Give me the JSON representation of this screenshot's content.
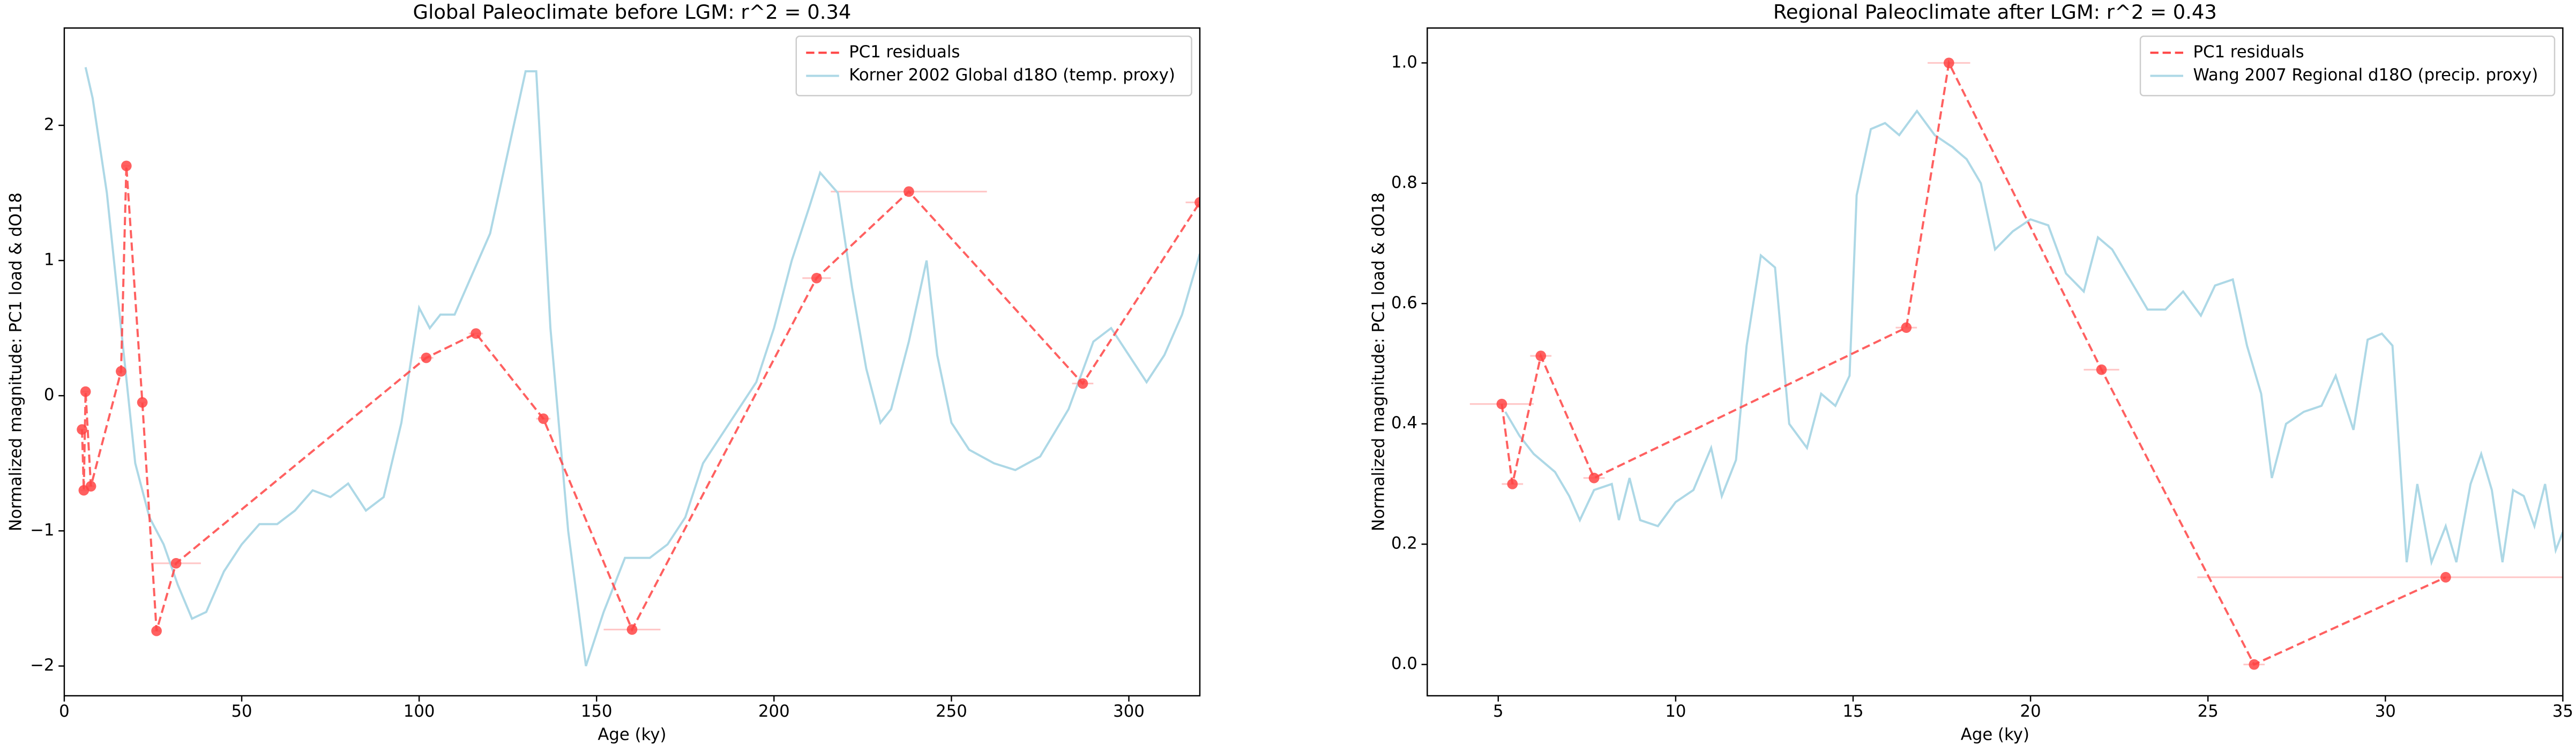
{
  "chart_data": [
    {
      "type": "line",
      "title": "Global Paleoclimate before LGM: r^2 = 0.34",
      "xlabel": "Age (ky)",
      "ylabel": "Normalized magnitude: PC1 load & dO18",
      "xlim": [
        0,
        320
      ],
      "ylim": [
        -2.22,
        2.72
      ],
      "xticks": [
        0,
        50,
        100,
        150,
        200,
        250,
        300
      ],
      "yticks": [
        {
          "value": -2,
          "label": "−2"
        },
        {
          "value": -1,
          "label": "−1"
        },
        0,
        1,
        2
      ],
      "legend": "upper right",
      "series": [
        {
          "name": "PC1 residuals",
          "color": "#ff4444",
          "style": "dashed",
          "marker": "o",
          "x": [
            5,
            5.5,
            6,
            7.5,
            16,
            17.5,
            22,
            26,
            31.5,
            102,
            116,
            135,
            160,
            212,
            238,
            287,
            320
          ],
          "values": [
            -0.25,
            -0.7,
            0.03,
            -0.67,
            0.18,
            1.7,
            -0.05,
            -1.74,
            -1.24,
            0.28,
            0.46,
            -0.17,
            -1.73,
            0.87,
            1.51,
            0.09,
            1.43
          ],
          "xerr": [
            1,
            1,
            1,
            1,
            1,
            1,
            1,
            1,
            7,
            2,
            2,
            2,
            8,
            4,
            22,
            3,
            4
          ]
        },
        {
          "name": "Korner 2002 Global d18O (temp. proxy)",
          "color": "#add8e6",
          "style": "solid",
          "x": [
            6,
            8,
            12,
            16,
            20,
            24,
            28,
            32,
            36,
            40,
            45,
            50,
            55,
            60,
            65,
            70,
            75,
            80,
            85,
            90,
            95,
            100,
            103,
            106,
            110,
            115,
            120,
            125,
            130,
            133,
            137,
            142,
            147,
            152,
            158,
            165,
            170,
            175,
            180,
            185,
            190,
            195,
            200,
            205,
            210,
            213,
            218,
            222,
            226,
            230,
            233,
            238,
            243,
            246,
            250,
            255,
            262,
            268,
            275,
            283,
            290,
            295,
            300,
            305,
            310,
            315,
            320
          ],
          "values": [
            2.43,
            2.2,
            1.5,
            0.5,
            -0.5,
            -0.9,
            -1.1,
            -1.4,
            -1.65,
            -1.6,
            -1.3,
            -1.1,
            -0.95,
            -0.95,
            -0.85,
            -0.7,
            -0.75,
            -0.65,
            -0.85,
            -0.75,
            -0.2,
            0.65,
            0.5,
            0.6,
            0.6,
            0.9,
            1.2,
            1.8,
            2.4,
            2.4,
            0.5,
            -1.0,
            -2.0,
            -1.6,
            -1.2,
            -1.2,
            -1.1,
            -0.9,
            -0.5,
            -0.3,
            -0.1,
            0.1,
            0.5,
            1.0,
            1.4,
            1.65,
            1.5,
            0.8,
            0.2,
            -0.2,
            -0.1,
            0.4,
            1.0,
            0.3,
            -0.2,
            -0.4,
            -0.5,
            -0.55,
            -0.45,
            -0.1,
            0.4,
            0.5,
            0.3,
            0.1,
            0.3,
            0.6,
            1.05
          ]
        }
      ]
    },
    {
      "type": "line",
      "title": "Regional Paleoclimate after LGM: r^2 = 0.43",
      "xlabel": "Age (ky)",
      "ylabel": "Normalized magnitude: PC1 load & dO18",
      "xlim": [
        3,
        35
      ],
      "ylim": [
        -0.052,
        1.058
      ],
      "xticks": [
        5,
        10,
        15,
        20,
        25,
        30,
        35
      ],
      "yticks": [
        {
          "value": 0,
          "label": "0.0"
        },
        0.2,
        0.4,
        0.6,
        0.8,
        {
          "value": 1,
          "label": "1.0"
        }
      ],
      "legend": "upper right",
      "series": [
        {
          "name": "PC1 residuals",
          "color": "#ff4444",
          "style": "dashed",
          "marker": "o",
          "x": [
            5.1,
            5.4,
            6.2,
            7.7,
            16.5,
            17.7,
            22.0,
            26.3,
            31.7
          ],
          "values": [
            0.433,
            0.3,
            0.513,
            0.31,
            0.56,
            1.0,
            0.49,
            0.0,
            0.145
          ],
          "xerr": [
            0.9,
            0.3,
            0.3,
            0.3,
            0.3,
            0.6,
            0.5,
            0.3,
            7
          ]
        },
        {
          "name": "Wang 2007 Regional d18O (precip. proxy)",
          "color": "#add8e6",
          "style": "solid",
          "x": [
            5.2,
            5.6,
            6,
            6.6,
            7,
            7.3,
            7.7,
            8.2,
            8.4,
            8.7,
            9,
            9.5,
            10,
            10.5,
            11,
            11.3,
            11.7,
            12,
            12.4,
            12.8,
            13.2,
            13.7,
            14.1,
            14.5,
            14.9,
            15.1,
            15.5,
            15.9,
            16.3,
            16.8,
            17.3,
            17.8,
            18.2,
            18.6,
            19,
            19.5,
            20,
            20.5,
            21,
            21.5,
            21.9,
            22.3,
            22.8,
            23.3,
            23.8,
            24.3,
            24.8,
            25.2,
            25.7,
            26.1,
            26.5,
            26.8,
            27.2,
            27.7,
            28.2,
            28.6,
            29.1,
            29.5,
            29.9,
            30.2,
            30.6,
            30.9,
            31.3,
            31.7,
            32,
            32.4,
            32.7,
            33,
            33.3,
            33.6,
            33.9,
            34.2,
            34.5,
            34.8,
            35
          ],
          "values": [
            0.42,
            0.38,
            0.35,
            0.32,
            0.28,
            0.24,
            0.29,
            0.3,
            0.24,
            0.31,
            0.24,
            0.23,
            0.27,
            0.29,
            0.36,
            0.28,
            0.34,
            0.53,
            0.68,
            0.66,
            0.4,
            0.36,
            0.45,
            0.43,
            0.48,
            0.78,
            0.89,
            0.9,
            0.88,
            0.92,
            0.88,
            0.86,
            0.84,
            0.8,
            0.69,
            0.72,
            0.74,
            0.73,
            0.65,
            0.62,
            0.71,
            0.69,
            0.64,
            0.59,
            0.59,
            0.62,
            0.58,
            0.63,
            0.64,
            0.53,
            0.45,
            0.31,
            0.4,
            0.42,
            0.43,
            0.48,
            0.39,
            0.54,
            0.55,
            0.53,
            0.17,
            0.3,
            0.17,
            0.23,
            0.17,
            0.3,
            0.35,
            0.29,
            0.17,
            0.29,
            0.28,
            0.23,
            0.3,
            0.19,
            0.22
          ]
        }
      ]
    }
  ]
}
